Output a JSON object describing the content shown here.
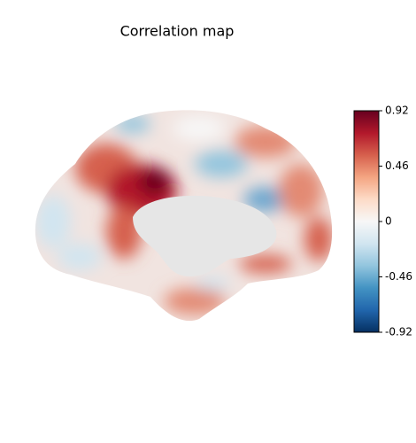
{
  "chart_data": {
    "type": "surface",
    "title": "Correlation map",
    "colorbar": {
      "lim": [
        -0.92,
        0.92
      ],
      "ticks": [
        -0.92,
        -0.46,
        0,
        0.46,
        0.92
      ],
      "colors": [
        "#053061",
        "#2166ac",
        "#4393c3",
        "#92c5de",
        "#d1e5f0",
        "#f7f7f7",
        "#fddbc7",
        "#f4a582",
        "#d6604d",
        "#b2182b",
        "#67001f"
      ]
    }
  }
}
